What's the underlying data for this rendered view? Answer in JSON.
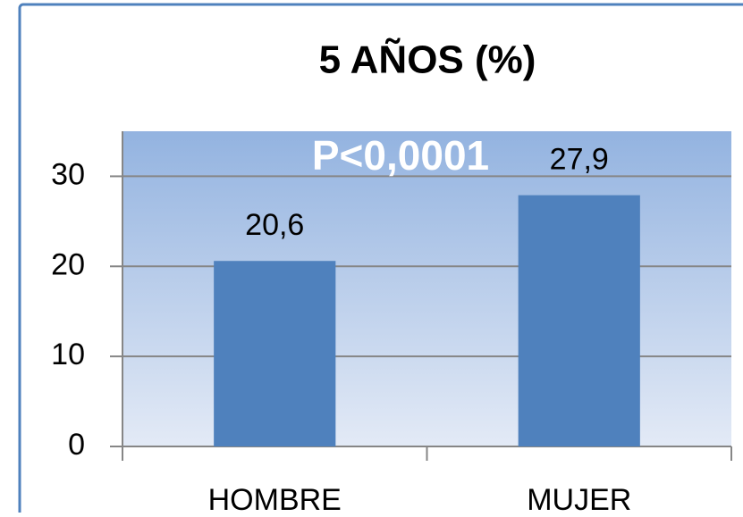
{
  "chart_data": {
    "type": "bar",
    "title": "5 AÑOS (%)",
    "annotation": "P<0,0001",
    "categories": [
      "HOMBRE",
      "MUJER"
    ],
    "values": [
      20.6,
      27.9
    ],
    "value_labels": [
      "20,6",
      "27,9"
    ],
    "color": "#4f81bd",
    "ylim": [
      0,
      35
    ],
    "yticks": [
      0,
      10,
      20,
      30
    ],
    "grid": true
  }
}
